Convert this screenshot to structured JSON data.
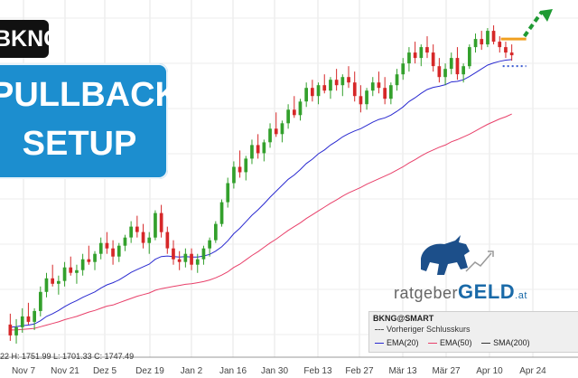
{
  "labels": {
    "ticker": "BKNG",
    "setup_line1": "PULLBACK",
    "setup_line2": "SETUP"
  },
  "watermark": {
    "part1": "ratgeber",
    "part2": "GELD",
    "part3": ".at"
  },
  "legend": {
    "title": "BKNG@SMART",
    "prev_close": "Vorheriger Schlusskurs",
    "items": [
      "EMA(20)",
      "EMA(50)",
      "SMA(200)"
    ]
  },
  "ohlc_readout": "22  H: 1751.99  L: 1701.33  C: 1747.49",
  "colors": {
    "up": "#33a02c",
    "down": "#d62728",
    "ema20": "#2a2ad0",
    "ema50": "#e8406a",
    "setup_bg": "#1c8ecf",
    "arrow": "#1f9a33",
    "target": "#f0a020"
  },
  "chart_data": {
    "type": "candlestick",
    "x_ticks": [
      "Nov 7",
      "Nov 21",
      "Dez 5",
      "Dez 19",
      "Jan 2",
      "Jan 16",
      "Jan 30",
      "Feb 13",
      "Feb 27",
      "Mär 13",
      "Mär 27",
      "Apr 10",
      "Apr 24"
    ],
    "candles": [
      [
        1530,
        1550,
        1500,
        1510
      ],
      [
        1510,
        1540,
        1495,
        1525
      ],
      [
        1525,
        1560,
        1515,
        1545
      ],
      [
        1545,
        1570,
        1530,
        1535
      ],
      [
        1535,
        1560,
        1520,
        1555
      ],
      [
        1555,
        1600,
        1545,
        1590
      ],
      [
        1590,
        1625,
        1580,
        1615
      ],
      [
        1615,
        1640,
        1600,
        1605
      ],
      [
        1605,
        1620,
        1585,
        1610
      ],
      [
        1610,
        1645,
        1600,
        1635
      ],
      [
        1635,
        1655,
        1620,
        1625
      ],
      [
        1625,
        1640,
        1605,
        1630
      ],
      [
        1630,
        1660,
        1620,
        1650
      ],
      [
        1650,
        1675,
        1640,
        1645
      ],
      [
        1645,
        1665,
        1630,
        1660
      ],
      [
        1660,
        1690,
        1650,
        1680
      ],
      [
        1680,
        1700,
        1660,
        1670
      ],
      [
        1670,
        1685,
        1640,
        1655
      ],
      [
        1655,
        1680,
        1645,
        1675
      ],
      [
        1675,
        1695,
        1665,
        1690
      ],
      [
        1690,
        1720,
        1680,
        1710
      ],
      [
        1710,
        1730,
        1690,
        1700
      ],
      [
        1700,
        1715,
        1670,
        1680
      ],
      [
        1680,
        1700,
        1660,
        1690
      ],
      [
        1690,
        1740,
        1685,
        1735
      ],
      [
        1735,
        1750,
        1690,
        1700
      ],
      [
        1700,
        1710,
        1660,
        1670
      ],
      [
        1670,
        1685,
        1640,
        1650
      ],
      [
        1650,
        1665,
        1630,
        1645
      ],
      [
        1645,
        1670,
        1635,
        1660
      ],
      [
        1660,
        1670,
        1630,
        1640
      ],
      [
        1640,
        1660,
        1625,
        1650
      ],
      [
        1650,
        1675,
        1640,
        1670
      ],
      [
        1670,
        1690,
        1655,
        1685
      ],
      [
        1685,
        1720,
        1680,
        1715
      ],
      [
        1715,
        1760,
        1710,
        1755
      ],
      [
        1755,
        1800,
        1745,
        1790
      ],
      [
        1790,
        1830,
        1780,
        1820
      ],
      [
        1820,
        1850,
        1800,
        1810
      ],
      [
        1810,
        1840,
        1795,
        1835
      ],
      [
        1835,
        1870,
        1825,
        1860
      ],
      [
        1860,
        1880,
        1835,
        1845
      ],
      [
        1845,
        1870,
        1830,
        1865
      ],
      [
        1865,
        1900,
        1855,
        1890
      ],
      [
        1890,
        1920,
        1875,
        1880
      ],
      [
        1880,
        1905,
        1865,
        1900
      ],
      [
        1900,
        1935,
        1890,
        1925
      ],
      [
        1925,
        1950,
        1910,
        1915
      ],
      [
        1915,
        1945,
        1905,
        1940
      ],
      [
        1940,
        1975,
        1930,
        1965
      ],
      [
        1965,
        1980,
        1940,
        1950
      ],
      [
        1950,
        1975,
        1935,
        1970
      ],
      [
        1970,
        1990,
        1955,
        1960
      ],
      [
        1960,
        1985,
        1945,
        1980
      ],
      [
        1980,
        2000,
        1960,
        1970
      ],
      [
        1970,
        1990,
        1950,
        1985
      ],
      [
        1985,
        2005,
        1965,
        1975
      ],
      [
        1975,
        1995,
        1940,
        1950
      ],
      [
        1950,
        1970,
        1920,
        1935
      ],
      [
        1935,
        1965,
        1925,
        1960
      ],
      [
        1960,
        1985,
        1950,
        1975
      ],
      [
        1975,
        1995,
        1955,
        1965
      ],
      [
        1965,
        1985,
        1935,
        1945
      ],
      [
        1945,
        1975,
        1935,
        1970
      ],
      [
        1970,
        2000,
        1960,
        1990
      ],
      [
        1990,
        2020,
        1980,
        2010
      ],
      [
        2010,
        2040,
        1995,
        2030
      ],
      [
        2030,
        2050,
        2010,
        2020
      ],
      [
        2020,
        2045,
        2005,
        2040
      ],
      [
        2040,
        2060,
        2020,
        2030
      ],
      [
        2030,
        2045,
        1995,
        2005
      ],
      [
        2005,
        2020,
        1975,
        1985
      ],
      [
        1985,
        2010,
        1970,
        2000
      ],
      [
        2000,
        2030,
        1990,
        2020
      ],
      [
        2020,
        2040,
        1980,
        1990
      ],
      [
        1990,
        2010,
        1975,
        2005
      ],
      [
        2005,
        2045,
        2000,
        2040
      ],
      [
        2040,
        2065,
        2030,
        2055
      ],
      [
        2055,
        2070,
        2035,
        2045
      ],
      [
        2045,
        2075,
        2040,
        2070
      ],
      [
        2070,
        2080,
        2045,
        2050
      ],
      [
        2050,
        2060,
        2030,
        2040
      ],
      [
        2040,
        2050,
        2020,
        2030
      ],
      [
        2030,
        2045,
        2015,
        2025
      ]
    ],
    "ema20": [
      1525,
      1526,
      1528,
      1529,
      1531,
      1537,
      1545,
      1550,
      1556,
      1563,
      1569,
      1574,
      1580,
      1585,
      1590,
      1597,
      1603,
      1607,
      1612,
      1619,
      1626,
      1631,
      1636,
      1641,
      1650,
      1655,
      1656,
      1655,
      1654,
      1655,
      1654,
      1654,
      1656,
      1659,
      1665,
      1673,
      1684,
      1697,
      1707,
      1719,
      1731,
      1741,
      1752,
      1764,
      1775,
      1786,
      1797,
      1805,
      1815,
      1826,
      1834,
      1844,
      1851,
      1860,
      1867,
      1875,
      1881,
      1886,
      1890,
      1896,
      1902,
      1907,
      1910,
      1915,
      1922,
      1930,
      1940,
      1947,
      1955,
      1962,
      1966,
      1968,
      1971,
      1976,
      1977,
      1980,
      1986,
      1993,
      2000,
      2007,
      2011,
      2014,
      2016,
      2017
    ],
    "ema50": [
      1520,
      1520,
      1521,
      1522,
      1523,
      1526,
      1529,
      1532,
      1535,
      1539,
      1542,
      1545,
      1549,
      1553,
      1556,
      1560,
      1564,
      1566,
      1570,
      1574,
      1578,
      1582,
      1585,
      1588,
      1593,
      1596,
      1598,
      1600,
      1602,
      1604,
      1605,
      1607,
      1609,
      1612,
      1616,
      1621,
      1627,
      1635,
      1641,
      1649,
      1657,
      1664,
      1672,
      1680,
      1687,
      1695,
      1703,
      1710,
      1717,
      1725,
      1732,
      1739,
      1746,
      1753,
      1759,
      1766,
      1772,
      1777,
      1782,
      1788,
      1793,
      1798,
      1803,
      1808,
      1814,
      1820,
      1827,
      1833,
      1840,
      1846,
      1851,
      1856,
      1860,
      1866,
      1870,
      1875,
      1880,
      1886,
      1892,
      1898,
      1903,
      1908,
      1912,
      1917
    ],
    "ylim": [
      1470,
      2110
    ]
  }
}
